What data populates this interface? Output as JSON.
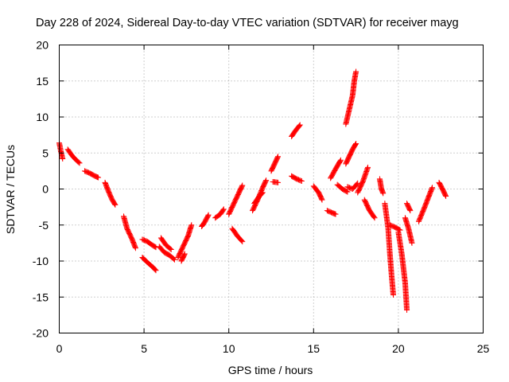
{
  "chart_data": {
    "type": "scatter",
    "title": "Day 228 of 2024, Sidereal Day-to-day VTEC variation (SDTVAR) for receiver mayg",
    "xlabel": "GPS time / hours",
    "ylabel": "SDTVAR / TECUs",
    "xlim": [
      0,
      25
    ],
    "ylim": [
      -20,
      20
    ],
    "xticks": [
      0,
      5,
      10,
      15,
      20,
      25
    ],
    "yticks": [
      -20,
      -15,
      -10,
      -5,
      0,
      5,
      10,
      15,
      20
    ],
    "grid": true,
    "marker": "+",
    "series_color": "#ff0000",
    "segments": [
      {
        "x": [
          0.0,
          0.1,
          0.2
        ],
        "y": [
          6.4,
          5.2,
          4.2
        ]
      },
      {
        "x": [
          0.5,
          0.8,
          1.1,
          1.2
        ],
        "y": [
          5.5,
          4.5,
          3.8,
          3.6
        ]
      },
      {
        "x": [
          1.5,
          1.8,
          2.1,
          2.3
        ],
        "y": [
          2.5,
          2.2,
          1.8,
          1.6
        ]
      },
      {
        "x": [
          2.7,
          2.9,
          3.1,
          3.3
        ],
        "y": [
          0.9,
          -0.3,
          -1.4,
          -2.2
        ]
      },
      {
        "x": [
          3.8,
          4.0,
          4.3,
          4.5
        ],
        "y": [
          -3.8,
          -5.5,
          -7.0,
          -8.2
        ]
      },
      {
        "x": [
          4.9,
          5.2,
          5.5,
          5.7
        ],
        "y": [
          -7.0,
          -7.3,
          -7.8,
          -8.1
        ]
      },
      {
        "x": [
          4.9,
          5.2,
          5.5,
          5.7
        ],
        "y": [
          -9.5,
          -10.2,
          -10.8,
          -11.3
        ]
      },
      {
        "x": [
          5.9,
          6.2,
          6.5,
          6.8
        ],
        "y": [
          -8.0,
          -8.8,
          -9.2,
          -9.8
        ]
      },
      {
        "x": [
          6.0,
          6.3,
          6.6
        ],
        "y": [
          -6.8,
          -7.8,
          -8.4
        ]
      },
      {
        "x": [
          7.0,
          7.3,
          7.6,
          7.8
        ],
        "y": [
          -9.5,
          -8.0,
          -6.5,
          -5.0
        ]
      },
      {
        "x": [
          7.2,
          7.4
        ],
        "y": [
          -10.0,
          -9.0
        ]
      },
      {
        "x": [
          8.4,
          8.6,
          8.8
        ],
        "y": [
          -5.2,
          -4.5,
          -3.6
        ]
      },
      {
        "x": [
          9.2,
          9.5,
          9.7
        ],
        "y": [
          -4.0,
          -3.5,
          -2.8
        ]
      },
      {
        "x": [
          10.0,
          10.3,
          10.6,
          10.8
        ],
        "y": [
          -3.5,
          -2.0,
          -0.5,
          0.5
        ]
      },
      {
        "x": [
          10.2,
          10.5,
          10.8
        ],
        "y": [
          -5.5,
          -6.5,
          -7.3
        ]
      },
      {
        "x": [
          11.4,
          11.7,
          12.0,
          12.2
        ],
        "y": [
          -3.0,
          -1.5,
          0.2,
          1.2
        ]
      },
      {
        "x": [
          11.5,
          11.8,
          12.0
        ],
        "y": [
          -2.0,
          -1.0,
          -0.5
        ]
      },
      {
        "x": [
          12.5,
          12.7,
          12.9
        ],
        "y": [
          2.5,
          3.5,
          4.5
        ]
      },
      {
        "x": [
          12.6,
          12.9
        ],
        "y": [
          1.0,
          0.9
        ]
      },
      {
        "x": [
          13.7,
          13.9,
          14.2
        ],
        "y": [
          7.3,
          8.0,
          8.9
        ]
      },
      {
        "x": [
          13.7,
          14.0,
          14.3
        ],
        "y": [
          1.8,
          1.4,
          1.1
        ]
      },
      {
        "x": [
          15.0,
          15.3,
          15.5
        ],
        "y": [
          0.4,
          -0.5,
          -1.5
        ]
      },
      {
        "x": [
          15.8,
          16.1,
          16.3
        ],
        "y": [
          -3.0,
          -3.3,
          -3.5
        ]
      },
      {
        "x": [
          16.0,
          16.3,
          16.6
        ],
        "y": [
          1.5,
          2.8,
          4.0
        ]
      },
      {
        "x": [
          16.4,
          16.7,
          17.0
        ],
        "y": [
          0.6,
          0.0,
          -0.4
        ]
      },
      {
        "x": [
          16.9,
          17.1,
          17.3,
          17.5
        ],
        "y": [
          3.5,
          4.5,
          5.5,
          6.3
        ]
      },
      {
        "x": [
          16.9,
          17.1,
          17.3,
          17.4,
          17.5
        ],
        "y": [
          9.0,
          11.0,
          13.0,
          15.0,
          16.3
        ]
      },
      {
        "x": [
          17.0,
          17.3,
          17.6
        ],
        "y": [
          0.3,
          0.0,
          0.8
        ]
      },
      {
        "x": [
          17.6,
          17.9,
          18.2
        ],
        "y": [
          -0.5,
          1.0,
          3.0
        ]
      },
      {
        "x": [
          18.0,
          18.3,
          18.6
        ],
        "y": [
          -1.5,
          -3.0,
          -4.0
        ]
      },
      {
        "x": [
          18.9,
          19.0,
          19.1
        ],
        "y": [
          1.4,
          0.0,
          -0.6
        ]
      },
      {
        "x": [
          19.2,
          19.4,
          19.5,
          19.6,
          19.7
        ],
        "y": [
          -2.0,
          -5.5,
          -9.0,
          -12.0,
          -14.7
        ]
      },
      {
        "x": [
          19.5,
          19.8,
          20.1
        ],
        "y": [
          -5.0,
          -5.3,
          -5.7
        ]
      },
      {
        "x": [
          20.0,
          20.2,
          20.4,
          20.5
        ],
        "y": [
          -6.0,
          -9.0,
          -13.0,
          -16.8
        ]
      },
      {
        "x": [
          20.4,
          20.6,
          20.8
        ],
        "y": [
          -4.0,
          -5.5,
          -7.5
        ]
      },
      {
        "x": [
          20.5,
          20.7
        ],
        "y": [
          -2.0,
          -3.0
        ]
      },
      {
        "x": [
          21.2,
          21.5,
          21.8,
          22.0
        ],
        "y": [
          -4.5,
          -2.8,
          -1.0,
          0.2
        ]
      },
      {
        "x": [
          22.4,
          22.6,
          22.8
        ],
        "y": [
          0.9,
          0.0,
          -1.0
        ]
      }
    ]
  }
}
